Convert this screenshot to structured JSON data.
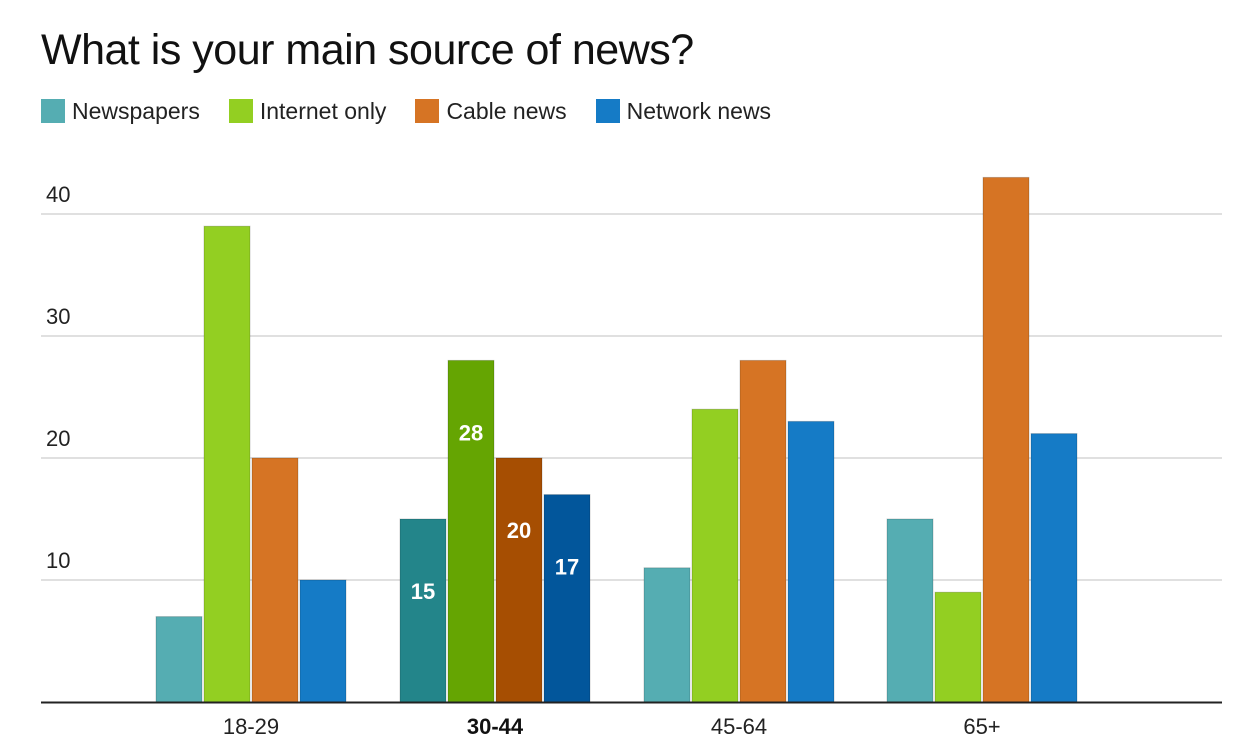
{
  "chart_data": {
    "type": "bar",
    "title": "What is your main source of news?",
    "categories": [
      "18-29",
      "30-44",
      "45-64",
      "65+"
    ],
    "highlighted_category": "30-44",
    "series": [
      {
        "name": "Newspapers",
        "color": "#55adb2",
        "highlight_color": "#23858a",
        "values": [
          7,
          15,
          11,
          15
        ]
      },
      {
        "name": "Internet only",
        "color": "#93cf22",
        "highlight_color": "#65a502",
        "values": [
          39,
          28,
          24,
          9
        ]
      },
      {
        "name": "Cable news",
        "color": "#d67424",
        "highlight_color": "#a64e02",
        "values": [
          20,
          20,
          28,
          43
        ]
      },
      {
        "name": "Network news",
        "color": "#157bc6",
        "highlight_color": "#02569b",
        "values": [
          10,
          17,
          23,
          22
        ]
      }
    ],
    "y_ticks": [
      "10",
      "20",
      "30",
      "40"
    ],
    "ylim": [
      0,
      45
    ],
    "grid": true,
    "legend_position": "top-left",
    "xlabel": "",
    "ylabel": ""
  }
}
